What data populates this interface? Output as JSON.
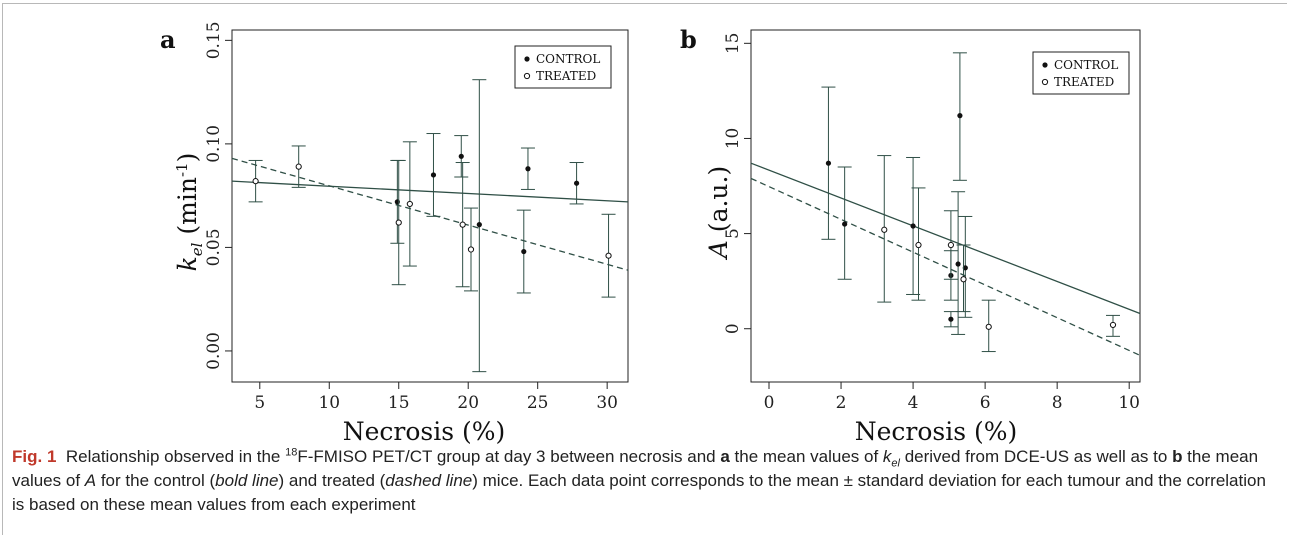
{
  "chart_data": [
    {
      "type": "scatter",
      "panel": "a",
      "xlabel": "Necrosis (%)",
      "ylabel": "k_el (min^-1)",
      "ylabel_main": "k",
      "ylabel_sub": "el",
      "ylabel_unit": "(min",
      "ylabel_sup": "-1",
      "xlim": [
        3,
        31.5
      ],
      "ylim": [
        -0.015,
        0.155
      ],
      "xticks": [
        "5",
        "10",
        "15",
        "20",
        "25",
        "30"
      ],
      "xtick_values": [
        5,
        10,
        15,
        20,
        25,
        30
      ],
      "yticks": [
        "0.00",
        "0.05",
        "0.10",
        "0.15"
      ],
      "ytick_values": [
        0.0,
        0.05,
        0.1,
        0.15
      ],
      "legend": [
        "CONTROL",
        "TREATED"
      ],
      "legend_position": "top-right",
      "series": [
        {
          "name": "CONTROL",
          "marker": "filled",
          "points": [
            {
              "x": 14.9,
              "y": 0.072,
              "lo": 0.052,
              "hi": 0.092
            },
            {
              "x": 17.5,
              "y": 0.085,
              "lo": 0.065,
              "hi": 0.105
            },
            {
              "x": 19.5,
              "y": 0.094,
              "lo": 0.084,
              "hi": 0.104
            },
            {
              "x": 20.8,
              "y": 0.061,
              "lo": -0.01,
              "hi": 0.131
            },
            {
              "x": 24.0,
              "y": 0.048,
              "lo": 0.028,
              "hi": 0.068
            },
            {
              "x": 24.3,
              "y": 0.088,
              "lo": 0.078,
              "hi": 0.098
            },
            {
              "x": 27.8,
              "y": 0.081,
              "lo": 0.071,
              "hi": 0.091
            }
          ],
          "fit": {
            "x": [
              3,
              31.5
            ],
            "y": [
              0.082,
              0.072
            ],
            "style": "solid"
          }
        },
        {
          "name": "TREATED",
          "marker": "open",
          "points": [
            {
              "x": 4.7,
              "y": 0.082,
              "lo": 0.072,
              "hi": 0.092
            },
            {
              "x": 7.8,
              "y": 0.089,
              "lo": 0.079,
              "hi": 0.099
            },
            {
              "x": 15.0,
              "y": 0.062,
              "lo": 0.032,
              "hi": 0.092
            },
            {
              "x": 15.8,
              "y": 0.071,
              "lo": 0.041,
              "hi": 0.101
            },
            {
              "x": 19.6,
              "y": 0.061,
              "lo": 0.031,
              "hi": 0.091
            },
            {
              "x": 20.2,
              "y": 0.049,
              "lo": 0.029,
              "hi": 0.069
            },
            {
              "x": 30.1,
              "y": 0.046,
              "lo": 0.026,
              "hi": 0.066
            }
          ],
          "fit": {
            "x": [
              3,
              31.5
            ],
            "y": [
              0.093,
              0.039
            ],
            "style": "dashed"
          }
        }
      ]
    },
    {
      "type": "scatter",
      "panel": "b",
      "xlabel": "Necrosis (%)",
      "ylabel": "A (a.u.)",
      "ylabel_main": "A",
      "ylabel_unit": "(a.u.)",
      "xlim": [
        -0.5,
        10.3
      ],
      "ylim": [
        -2.8,
        15.7
      ],
      "xticks": [
        "0",
        "2",
        "4",
        "6",
        "8",
        "10"
      ],
      "xtick_values": [
        0,
        2,
        4,
        6,
        8,
        10
      ],
      "yticks": [
        "0",
        "5",
        "10",
        "15"
      ],
      "ytick_values": [
        0,
        5,
        10,
        15
      ],
      "legend": [
        "CONTROL",
        "TREATED"
      ],
      "legend_position": "top-right",
      "series": [
        {
          "name": "CONTROL",
          "marker": "filled",
          "points": [
            {
              "x": 1.65,
              "y": 8.7,
              "lo": 4.7,
              "hi": 12.7
            },
            {
              "x": 2.1,
              "y": 5.5,
              "lo": 2.6,
              "hi": 8.5
            },
            {
              "x": 4.0,
              "y": 5.4,
              "lo": 1.8,
              "hi": 9.0
            },
            {
              "x": 5.05,
              "y": 0.5,
              "lo": 0.1,
              "hi": 0.9
            },
            {
              "x": 5.05,
              "y": 2.8,
              "lo": 1.5,
              "hi": 4.1
            },
            {
              "x": 5.25,
              "y": 3.4,
              "lo": -0.3,
              "hi": 7.2
            },
            {
              "x": 5.3,
              "y": 11.2,
              "lo": 7.8,
              "hi": 14.5
            },
            {
              "x": 5.45,
              "y": 3.2,
              "lo": 0.6,
              "hi": 5.9
            }
          ],
          "fit": {
            "x": [
              -0.5,
              10.3
            ],
            "y": [
              8.7,
              0.8
            ],
            "style": "solid"
          }
        },
        {
          "name": "TREATED",
          "marker": "open",
          "points": [
            {
              "x": 3.2,
              "y": 5.2,
              "lo": 1.4,
              "hi": 9.1
            },
            {
              "x": 4.15,
              "y": 4.4,
              "lo": 1.5,
              "hi": 7.4
            },
            {
              "x": 5.05,
              "y": 4.4,
              "lo": 2.6,
              "hi": 6.2
            },
            {
              "x": 5.4,
              "y": 2.6,
              "lo": 0.9,
              "hi": 4.4
            },
            {
              "x": 6.1,
              "y": 0.1,
              "lo": -1.2,
              "hi": 1.5
            },
            {
              "x": 9.55,
              "y": 0.2,
              "lo": -0.4,
              "hi": 0.7
            }
          ],
          "fit": {
            "x": [
              -0.5,
              10.3
            ],
            "y": [
              7.9,
              -1.4
            ],
            "style": "dashed"
          }
        }
      ]
    }
  ],
  "caption": {
    "fig_label": "Fig. 1",
    "part1": "Relationship observed in the ",
    "sup18": "18",
    "part2": "F-FMISO PET/CT group at day 3 between necrosis and ",
    "bold_a": "a",
    "part3": " the mean values of ",
    "k": "k",
    "el": "el",
    "part4": " derived from DCE-US as well as to ",
    "bold_b": "b",
    "part5": " the mean values of ",
    "A": "A",
    "part6": " for the control (",
    "bold_line": "bold line",
    "part7": ") and treated (",
    "dashed_line": "dashed line",
    "part8": ") mice. Each data point corresponds to the mean ± standard deviation for each tumour and the correlation is based on these mean values from each experiment"
  }
}
